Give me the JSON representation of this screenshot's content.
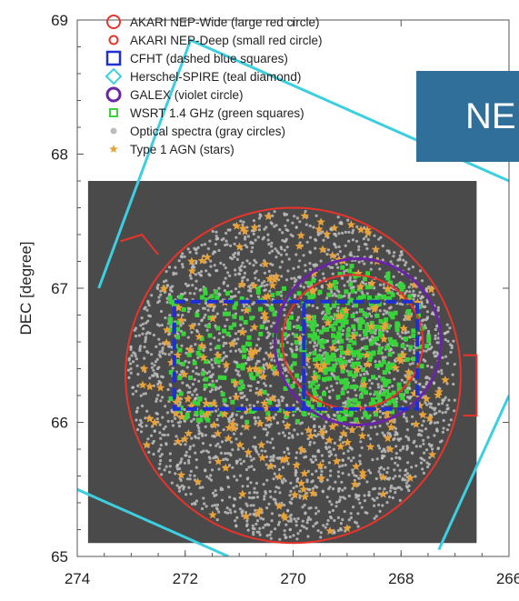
{
  "chart_data": {
    "type": "scatter",
    "xlabel": "",
    "ylabel": "DEC [degree]",
    "xlim": [
      274,
      266
    ],
    "ylim": [
      65,
      69
    ],
    "x_reversed": true,
    "xticks": [
      "274",
      "272",
      "270",
      "268",
      "266"
    ],
    "yticks": [
      "65",
      "66",
      "67",
      "68",
      "69"
    ],
    "grid": false,
    "legend_position": "top-left",
    "legend": [
      {
        "label": "AKARI NEP-Wide (large red circle)",
        "marker": "open-circle-large",
        "color": "#e8342b"
      },
      {
        "label": "AKARI NEP-Deep (small red circle)",
        "marker": "open-circle-small",
        "color": "#e8342b"
      },
      {
        "label": "CFHT (dashed blue squares)",
        "marker": "open-square",
        "color": "#1f2fd6"
      },
      {
        "label": "Herschel-SPIRE (teal diamond)",
        "marker": "open-diamond",
        "color": "#3ccfe0"
      },
      {
        "label": "GALEX (violet circle)",
        "marker": "open-circle",
        "color": "#6a24a8"
      },
      {
        "label": "WSRT 1.4 GHz (green squares)",
        "marker": "filled-square",
        "color": "#39d43a"
      },
      {
        "label": "Optical spectra (gray circles)",
        "marker": "filled-circle",
        "color": "#bdbdbd"
      },
      {
        "label": "Type 1 AGN (stars)",
        "marker": "star",
        "color": "#e8a23a"
      }
    ],
    "image_region": {
      "ra_range": [
        273.8,
        266.6
      ],
      "dec_range": [
        65.1,
        67.8
      ],
      "color": "#4a4a4a"
    },
    "regions": {
      "akari_nep_wide": {
        "center": [
          270.0,
          66.35
        ],
        "radius_deg_dec": 1.25,
        "color": "#e8342b"
      },
      "akari_nep_deep": {
        "center": [
          268.9,
          66.6
        ],
        "radius_deg_dec": 0.5,
        "color": "#e8342b"
      },
      "cfht": {
        "ra_range": [
          272.2,
          267.7
        ],
        "dec_range": [
          66.1,
          66.9
        ],
        "split_ra": 269.8,
        "color": "#1f2fd6"
      },
      "galex": {
        "center": [
          268.8,
          66.6
        ],
        "radius_deg_dec": 0.62,
        "color": "#6a24a8"
      },
      "herschel_spire": [
        [
          [
            273.6,
            67.0
          ],
          [
            271.9,
            68.85
          ],
          [
            266.0,
            67.8
          ]
        ],
        [
          [
            274.0,
            65.5
          ],
          [
            271.2,
            65.0
          ]
        ],
        [
          [
            267.3,
            65.05
          ],
          [
            266.0,
            66.2
          ]
        ]
      ]
    },
    "wsrt_region": {
      "ra_range": [
        272.3,
        268.1
      ],
      "dec_range": [
        66.0,
        67.0
      ],
      "color": "#39d43a"
    },
    "optical_density": "dense within NEP-Wide circle",
    "agn_count_estimate": 230
  },
  "banner_text": "NE"
}
